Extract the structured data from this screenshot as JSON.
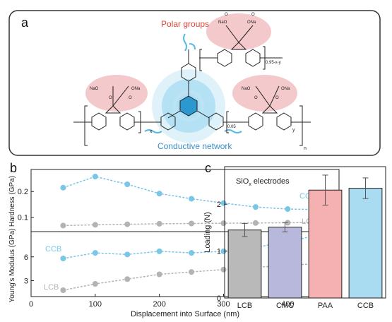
{
  "panel_a": {
    "label": "a",
    "polar_label": "Polar groups",
    "conductive_label": "Conductive network",
    "sub_x": "x",
    "sub_y": "y",
    "sub_n": "n",
    "sub_005": "0.05",
    "sub_095": "0.95-x-y",
    "na_o": "NaO",
    "o_na": "ONa",
    "o": "O",
    "colors": {
      "polar": "#e0453a",
      "network": "#3a8fc8",
      "bubble": "#f2c4c6",
      "glow": "#9ed7ee"
    }
  },
  "panel_b": {
    "label": "b",
    "xlabel": "Displacement into Surface (nm)",
    "x_ticks": [
      "0",
      "100",
      "200",
      "300",
      "400"
    ]
  },
  "panel_c": {
    "label": "c",
    "annotation": "SiOx electrodes",
    "ylabel": "Loading (N)"
  },
  "chart_data": [
    {
      "type": "line",
      "panel": "b-top",
      "ylabel": "Hardness (GPa)",
      "x": [
        50,
        100,
        150,
        200,
        250,
        300,
        350,
        400,
        450
      ],
      "xlim": [
        0,
        480
      ],
      "ylim": [
        0.05,
        0.28
      ],
      "y_ticks": [
        "0.1",
        "0.2"
      ],
      "series": [
        {
          "name": "CCB",
          "color": "#79c6e6",
          "values": [
            0.215,
            0.258,
            0.228,
            0.192,
            0.172,
            0.155,
            0.14,
            0.132,
            0.13
          ]
        },
        {
          "name": "LCB",
          "color": "#b3b3b3",
          "values": [
            0.068,
            0.071,
            0.073,
            0.075,
            0.076,
            0.077,
            0.078,
            0.079,
            0.08
          ]
        }
      ]
    },
    {
      "type": "line",
      "panel": "b-bottom",
      "ylabel": "Young's Modulus (GPa)",
      "x": [
        50,
        100,
        150,
        200,
        250,
        300,
        350,
        400,
        450
      ],
      "xlim": [
        0,
        480
      ],
      "ylim": [
        1,
        9
      ],
      "y_ticks": [
        "3",
        "6"
      ],
      "series": [
        {
          "name": "CCB",
          "color": "#79c6e6",
          "values": [
            5.8,
            6.5,
            6.3,
            6.7,
            6.5,
            6.7,
            7.2,
            7.9,
            8.8
          ]
        },
        {
          "name": "LCB",
          "color": "#b3b3b3",
          "values": [
            1.8,
            2.6,
            3.2,
            3.8,
            4.1,
            4.4,
            4.7,
            4.9,
            5.2
          ]
        }
      ]
    },
    {
      "type": "bar",
      "panel": "c",
      "categories": [
        "LCB",
        "CMC",
        "PAA",
        "CCB"
      ],
      "values": [
        1.45,
        1.51,
        2.3,
        2.34
      ],
      "errors": [
        0.14,
        0.1,
        0.32,
        0.22
      ],
      "colors": [
        "#b9b9b9",
        "#b8b8dc",
        "#f5b1b1",
        "#a9dcf1"
      ],
      "ylabel": "Loading (N)",
      "ylim": [
        0,
        2.8
      ],
      "y_ticks": [
        "0",
        "1",
        "2"
      ]
    }
  ]
}
